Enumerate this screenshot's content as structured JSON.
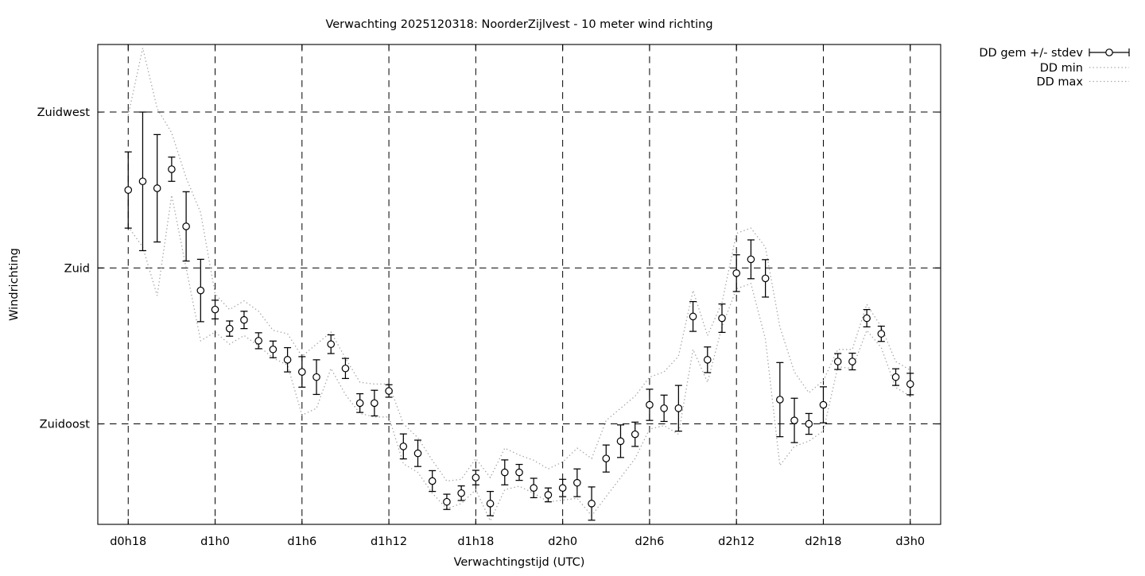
{
  "chart_data": {
    "type": "scatter",
    "title": "Verwachting 2025120318: NoorderZijlvest - 10 meter wind richting",
    "xlabel": "Verwachtingstijd (UTC)",
    "ylabel": "Windrichting",
    "grid": true,
    "legend_position": "outside-top-right",
    "xlim": [
      -2.1,
      56.1
    ],
    "ylim": [
      106,
      244.5
    ],
    "xticks": [
      {
        "x": 0,
        "label": "d0h18"
      },
      {
        "x": 6,
        "label": "d1h0"
      },
      {
        "x": 12,
        "label": "d1h6"
      },
      {
        "x": 18,
        "label": "d1h12"
      },
      {
        "x": 24,
        "label": "d1h18"
      },
      {
        "x": 30,
        "label": "d2h0"
      },
      {
        "x": 36,
        "label": "d2h6"
      },
      {
        "x": 42,
        "label": "d2h12"
      },
      {
        "x": 48,
        "label": "d2h18"
      },
      {
        "x": 54,
        "label": "d3h0"
      }
    ],
    "yticks": [
      {
        "value": 225,
        "label": "Zuidwest"
      },
      {
        "value": 180,
        "label": "Zuid"
      },
      {
        "value": 135,
        "label": "Zuidoost"
      }
    ],
    "x_hours_after_d0h18": [
      0,
      1,
      2,
      3,
      4,
      5,
      6,
      7,
      8,
      9,
      10,
      11,
      12,
      13,
      14,
      15,
      16,
      17,
      18,
      19,
      20,
      21,
      22,
      23,
      24,
      25,
      26,
      27,
      28,
      29,
      30,
      31,
      32,
      33,
      34,
      35,
      36,
      37,
      38,
      39,
      40,
      41,
      42,
      43,
      44,
      45,
      46,
      47,
      48,
      49,
      50,
      51,
      52,
      53,
      54
    ],
    "legend": {
      "entries": [
        {
          "label": "DD gem +/- stdev",
          "style": "errorbar"
        },
        {
          "label": "DD min",
          "style": "dotted"
        },
        {
          "label": "DD max",
          "style": "dotted"
        }
      ]
    },
    "series": [
      {
        "name": "DD gem +/- stdev",
        "style": "points-with-errorbars",
        "mean": [
          202.5,
          205,
          203,
          208.5,
          192,
          173.5,
          168,
          162.5,
          165,
          159,
          156.5,
          153.5,
          150,
          148.5,
          158,
          151,
          141,
          141,
          144.5,
          128.5,
          126.5,
          118.5,
          112.5,
          115,
          119.5,
          112,
          121,
          121,
          116.5,
          114.5,
          116.5,
          118,
          112,
          125,
          130,
          132,
          140.5,
          139.5,
          139.5,
          166,
          153.5,
          165.5,
          178.5,
          182.5,
          177,
          142,
          136,
          135,
          140.5,
          153,
          153,
          165.5,
          161,
          148.5,
          146.5
        ],
        "stdev": [
          11,
          20,
          15.5,
          3.5,
          10,
          9,
          2.7,
          2.2,
          2.5,
          2.3,
          2.4,
          3.5,
          4.4,
          5,
          2.7,
          2.9,
          2.7,
          3.7,
          1.8,
          3.6,
          3.8,
          3,
          2.2,
          2.1,
          2.1,
          3.5,
          3.6,
          2.3,
          2.8,
          2,
          2.5,
          4,
          4.8,
          3.9,
          4.7,
          3.5,
          4.5,
          3.8,
          6.6,
          4.3,
          3.7,
          4.1,
          5.3,
          5.6,
          5.4,
          10.7,
          6.4,
          3,
          5.2,
          2.3,
          2.4,
          2.5,
          2.2,
          2.4,
          3.1
        ]
      },
      {
        "name": "DD min",
        "style": "dotted-line",
        "values": [
          192,
          186,
          172,
          201,
          180,
          159,
          161.5,
          158,
          160.5,
          157.5,
          154,
          152,
          137.5,
          139.5,
          151,
          143.5,
          138,
          137,
          137,
          123.5,
          121,
          115,
          110.5,
          112,
          116,
          107,
          116,
          117,
          115,
          112.5,
          113,
          113.5,
          108.5,
          114,
          119.5,
          125,
          133.5,
          134.5,
          132,
          156.5,
          147,
          163,
          174,
          175.5,
          159.5,
          123,
          128.5,
          130,
          133,
          151.5,
          151,
          162,
          157,
          145.5,
          143
        ]
      },
      {
        "name": "DD max",
        "style": "dotted-line",
        "values": [
          224,
          243.5,
          226,
          219,
          206,
          196,
          172.5,
          168,
          170.5,
          167.5,
          162,
          161,
          154.5,
          158,
          161.5,
          154,
          147,
          146.5,
          146.5,
          135,
          131,
          124.5,
          118.5,
          119,
          125,
          119.5,
          128,
          126,
          124.5,
          122,
          124,
          128,
          125,
          136,
          139.5,
          143,
          148.5,
          150,
          154.5,
          173.5,
          160.5,
          170,
          190,
          191.5,
          186,
          163,
          150,
          144,
          147.5,
          156.5,
          156.5,
          169.5,
          163,
          153,
          150.5
        ]
      }
    ],
    "colors": {
      "foreground": "#000000",
      "minmax_dotted": "#a6a6a6",
      "background": "#ffffff"
    }
  }
}
